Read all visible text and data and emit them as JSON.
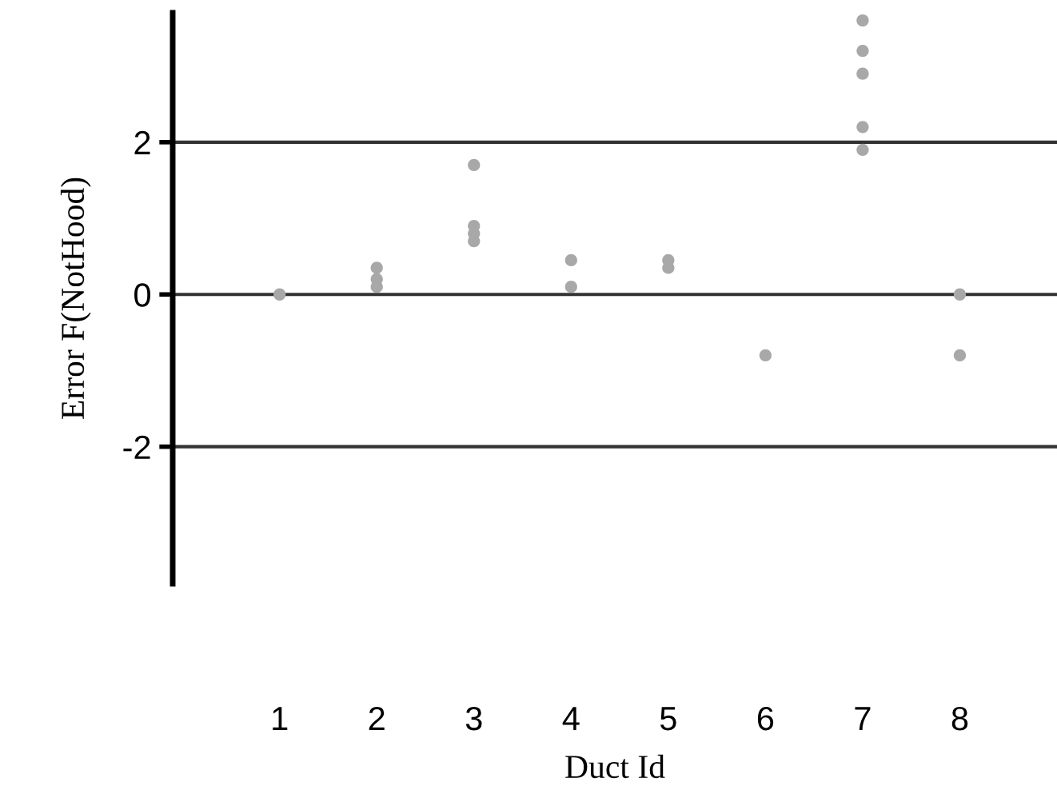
{
  "chart_data": {
    "type": "scatter",
    "xlabel": "Duct Id",
    "ylabel": "Error F(NotHood)",
    "x": [
      1,
      2,
      2,
      2,
      3,
      3,
      3,
      3,
      4,
      4,
      5,
      5,
      6,
      7,
      7,
      7,
      7,
      7,
      8,
      8
    ],
    "values": [
      0.0,
      0.35,
      0.2,
      0.1,
      1.7,
      0.9,
      0.8,
      0.7,
      0.45,
      0.1,
      0.45,
      0.35,
      -0.8,
      3.6,
      3.2,
      2.9,
      2.2,
      1.9,
      0.0,
      -0.8
    ],
    "color": "#a8a8a8",
    "marker": "circle",
    "xlim": [
      -0.1,
      9
    ],
    "xticks": [
      1,
      2,
      3,
      4,
      5,
      6,
      7,
      8
    ],
    "ylim": [
      -3.8,
      3.7
    ],
    "yticks": [
      {
        "value": -2,
        "label": "-2"
      },
      0,
      2
    ],
    "grid": "y"
  }
}
